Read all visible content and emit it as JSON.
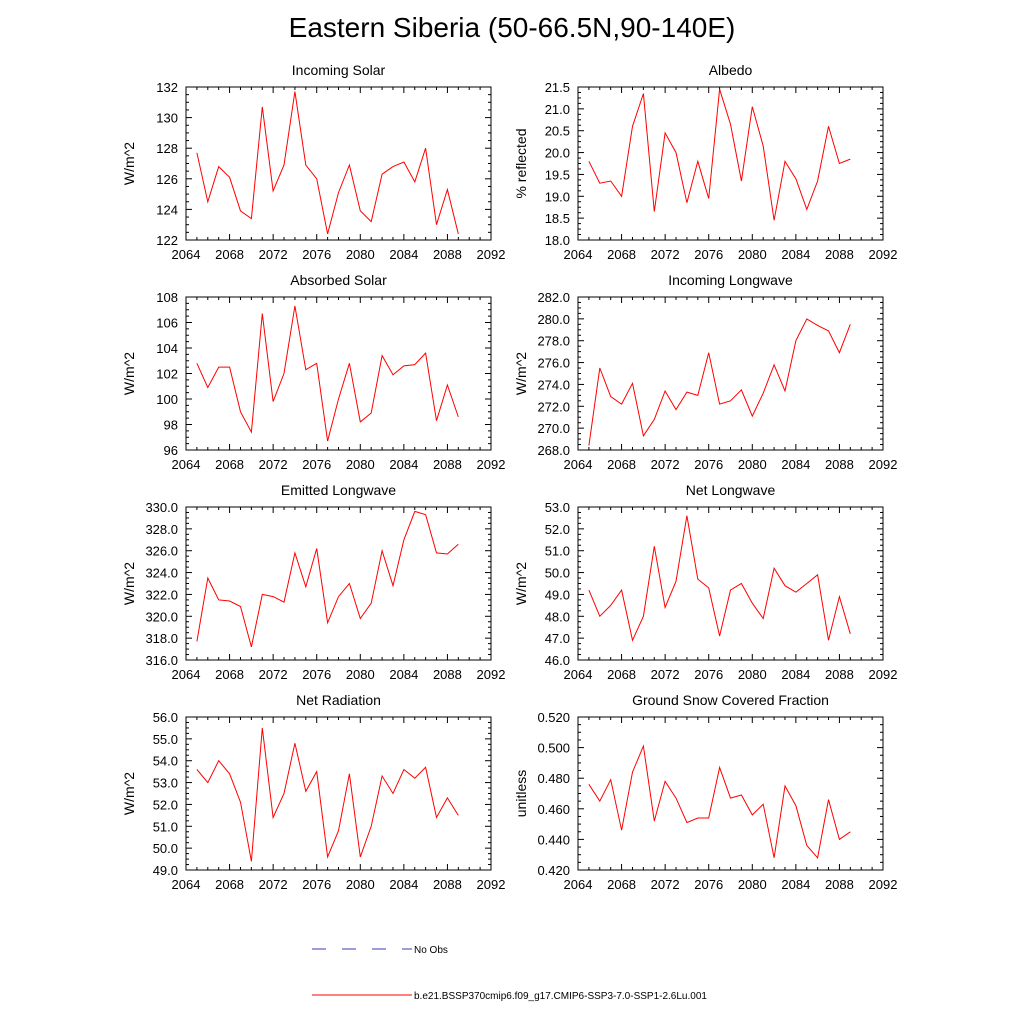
{
  "title": "Eastern Siberia (50-66.5N,90-140E)",
  "colors": {
    "series": "#ff0000",
    "obs": "#3b3bb5",
    "axis": "#000000"
  },
  "legend": [
    {
      "label": "No Obs",
      "style": "dashed",
      "color": "#3b3bb5"
    },
    {
      "label": "b.e21.BSSP370cmip6.f09_g17.CMIP6-SSP3-7.0-SSP1-2.6Lu.001",
      "style": "solid",
      "color": "#ff0000"
    }
  ],
  "chart_data": [
    {
      "type": "line",
      "title": "Incoming Solar",
      "xlabel": "",
      "ylabel": "W/m^2",
      "xlim": [
        2064,
        2092
      ],
      "xticks": [
        2064,
        2068,
        2072,
        2076,
        2080,
        2084,
        2088,
        2092
      ],
      "ylim": [
        122,
        132
      ],
      "yticks": [
        122,
        124,
        126,
        128,
        130,
        132
      ],
      "ydecimals": 0,
      "x": [
        2065,
        2066,
        2067,
        2068,
        2069,
        2070,
        2071,
        2072,
        2073,
        2074,
        2075,
        2076,
        2077,
        2078,
        2079,
        2080,
        2081,
        2082,
        2083,
        2084,
        2085,
        2086,
        2087,
        2088,
        2089
      ],
      "values": [
        127.7,
        124.5,
        126.8,
        126.1,
        123.9,
        123.4,
        130.7,
        125.2,
        126.9,
        131.7,
        126.9,
        126.0,
        122.4,
        125.1,
        126.9,
        123.9,
        123.2,
        126.3,
        126.8,
        127.1,
        125.8,
        128.0,
        123.0,
        125.3,
        122.4
      ]
    },
    {
      "type": "line",
      "title": "Albedo",
      "xlabel": "",
      "ylabel": "% reflected",
      "xlim": [
        2064,
        2092
      ],
      "xticks": [
        2064,
        2068,
        2072,
        2076,
        2080,
        2084,
        2088,
        2092
      ],
      "ylim": [
        18.0,
        21.5
      ],
      "yticks": [
        18.0,
        18.5,
        19.0,
        19.5,
        20.0,
        20.5,
        21.0,
        21.5
      ],
      "ydecimals": 1,
      "x": [
        2065,
        2066,
        2067,
        2068,
        2069,
        2070,
        2071,
        2072,
        2073,
        2074,
        2075,
        2076,
        2077,
        2078,
        2079,
        2080,
        2081,
        2082,
        2083,
        2084,
        2085,
        2086,
        2087,
        2088,
        2089
      ],
      "values": [
        19.8,
        19.3,
        19.35,
        19.0,
        20.6,
        21.35,
        18.65,
        20.45,
        20.0,
        18.85,
        19.8,
        18.95,
        21.45,
        20.65,
        19.35,
        21.05,
        20.15,
        18.45,
        19.8,
        19.4,
        18.7,
        19.35,
        20.6,
        19.75,
        19.85
      ]
    },
    {
      "type": "line",
      "title": "Absorbed Solar",
      "xlabel": "",
      "ylabel": "W/m^2",
      "xlim": [
        2064,
        2092
      ],
      "xticks": [
        2064,
        2068,
        2072,
        2076,
        2080,
        2084,
        2088,
        2092
      ],
      "ylim": [
        96,
        108
      ],
      "yticks": [
        96,
        98,
        100,
        102,
        104,
        106,
        108
      ],
      "ydecimals": 0,
      "x": [
        2065,
        2066,
        2067,
        2068,
        2069,
        2070,
        2071,
        2072,
        2073,
        2074,
        2075,
        2076,
        2077,
        2078,
        2079,
        2080,
        2081,
        2082,
        2083,
        2084,
        2085,
        2086,
        2087,
        2088,
        2089
      ],
      "values": [
        102.8,
        100.9,
        102.5,
        102.5,
        99.0,
        97.4,
        106.7,
        99.8,
        102.0,
        107.3,
        102.3,
        102.8,
        96.7,
        100.0,
        102.8,
        98.2,
        98.9,
        103.4,
        101.9,
        102.6,
        102.7,
        103.6,
        98.3,
        101.1,
        98.6
      ]
    },
    {
      "type": "line",
      "title": "Incoming Longwave",
      "xlabel": "",
      "ylabel": "W/m^2",
      "xlim": [
        2064,
        2092
      ],
      "xticks": [
        2064,
        2068,
        2072,
        2076,
        2080,
        2084,
        2088,
        2092
      ],
      "ylim": [
        268.0,
        282.0
      ],
      "yticks": [
        268.0,
        270.0,
        272.0,
        274.0,
        276.0,
        278.0,
        280.0,
        282.0
      ],
      "ydecimals": 1,
      "x": [
        2065,
        2066,
        2067,
        2068,
        2069,
        2070,
        2071,
        2072,
        2073,
        2074,
        2075,
        2076,
        2077,
        2078,
        2079,
        2080,
        2081,
        2082,
        2083,
        2084,
        2085,
        2086,
        2087,
        2088,
        2089
      ],
      "values": [
        268.4,
        275.5,
        272.9,
        272.2,
        274.1,
        269.3,
        270.8,
        273.4,
        271.7,
        273.3,
        273.0,
        276.9,
        272.2,
        272.5,
        273.5,
        271.1,
        273.2,
        275.8,
        273.4,
        278.0,
        280.0,
        279.4,
        278.9,
        276.9,
        279.5
      ]
    },
    {
      "type": "line",
      "title": "Emitted Longwave",
      "xlabel": "",
      "ylabel": "W/m^2",
      "xlim": [
        2064,
        2092
      ],
      "xticks": [
        2064,
        2068,
        2072,
        2076,
        2080,
        2084,
        2088,
        2092
      ],
      "ylim": [
        316.0,
        330.0
      ],
      "yticks": [
        316.0,
        318.0,
        320.0,
        322.0,
        324.0,
        326.0,
        328.0,
        330.0
      ],
      "ydecimals": 1,
      "x": [
        2065,
        2066,
        2067,
        2068,
        2069,
        2070,
        2071,
        2072,
        2073,
        2074,
        2075,
        2076,
        2077,
        2078,
        2079,
        2080,
        2081,
        2082,
        2083,
        2084,
        2085,
        2086,
        2087,
        2088,
        2089
      ],
      "values": [
        317.7,
        323.5,
        321.5,
        321.4,
        320.9,
        317.2,
        322.0,
        321.8,
        321.3,
        325.8,
        322.7,
        326.2,
        319.4,
        321.8,
        323.0,
        319.8,
        321.2,
        326.0,
        322.8,
        327.0,
        329.6,
        329.3,
        325.8,
        325.7,
        326.6
      ]
    },
    {
      "type": "line",
      "title": "Net Longwave",
      "xlabel": "",
      "ylabel": "W/m^2",
      "xlim": [
        2064,
        2092
      ],
      "xticks": [
        2064,
        2068,
        2072,
        2076,
        2080,
        2084,
        2088,
        2092
      ],
      "ylim": [
        46.0,
        53.0
      ],
      "yticks": [
        46.0,
        47.0,
        48.0,
        49.0,
        50.0,
        51.0,
        52.0,
        53.0
      ],
      "ydecimals": 1,
      "x": [
        2065,
        2066,
        2067,
        2068,
        2069,
        2070,
        2071,
        2072,
        2073,
        2074,
        2075,
        2076,
        2077,
        2078,
        2079,
        2080,
        2081,
        2082,
        2083,
        2084,
        2085,
        2086,
        2087,
        2088,
        2089
      ],
      "values": [
        49.2,
        48.0,
        48.5,
        49.2,
        46.9,
        48.0,
        51.2,
        48.4,
        49.6,
        52.6,
        49.7,
        49.3,
        47.1,
        49.2,
        49.5,
        48.6,
        47.9,
        50.2,
        49.4,
        49.1,
        49.5,
        49.9,
        46.9,
        48.9,
        47.2
      ]
    },
    {
      "type": "line",
      "title": "Net Radiation",
      "xlabel": "",
      "ylabel": "W/m^2",
      "xlim": [
        2064,
        2092
      ],
      "xticks": [
        2064,
        2068,
        2072,
        2076,
        2080,
        2084,
        2088,
        2092
      ],
      "ylim": [
        49.0,
        56.0
      ],
      "yticks": [
        49.0,
        50.0,
        51.0,
        52.0,
        53.0,
        54.0,
        55.0,
        56.0
      ],
      "ydecimals": 1,
      "x": [
        2065,
        2066,
        2067,
        2068,
        2069,
        2070,
        2071,
        2072,
        2073,
        2074,
        2075,
        2076,
        2077,
        2078,
        2079,
        2080,
        2081,
        2082,
        2083,
        2084,
        2085,
        2086,
        2087,
        2088,
        2089
      ],
      "values": [
        53.6,
        53.0,
        54.0,
        53.4,
        52.1,
        49.4,
        55.5,
        51.4,
        52.5,
        54.8,
        52.6,
        53.5,
        49.6,
        50.8,
        53.4,
        49.6,
        51.0,
        53.3,
        52.5,
        53.6,
        53.2,
        53.7,
        51.4,
        52.3,
        51.5
      ]
    },
    {
      "type": "line",
      "title": "Ground Snow Covered Fraction",
      "xlabel": "",
      "ylabel": "unitless",
      "xlim": [
        2064,
        2092
      ],
      "xticks": [
        2064,
        2068,
        2072,
        2076,
        2080,
        2084,
        2088,
        2092
      ],
      "ylim": [
        0.42,
        0.52
      ],
      "yticks": [
        0.42,
        0.44,
        0.46,
        0.48,
        0.5,
        0.52
      ],
      "ydecimals": 3,
      "x": [
        2065,
        2066,
        2067,
        2068,
        2069,
        2070,
        2071,
        2072,
        2073,
        2074,
        2075,
        2076,
        2077,
        2078,
        2079,
        2080,
        2081,
        2082,
        2083,
        2084,
        2085,
        2086,
        2087,
        2088,
        2089
      ],
      "values": [
        0.476,
        0.465,
        0.479,
        0.446,
        0.484,
        0.501,
        0.452,
        0.478,
        0.467,
        0.451,
        0.454,
        0.454,
        0.487,
        0.467,
        0.469,
        0.456,
        0.463,
        0.428,
        0.475,
        0.462,
        0.436,
        0.428,
        0.466,
        0.44,
        0.445
      ]
    }
  ]
}
